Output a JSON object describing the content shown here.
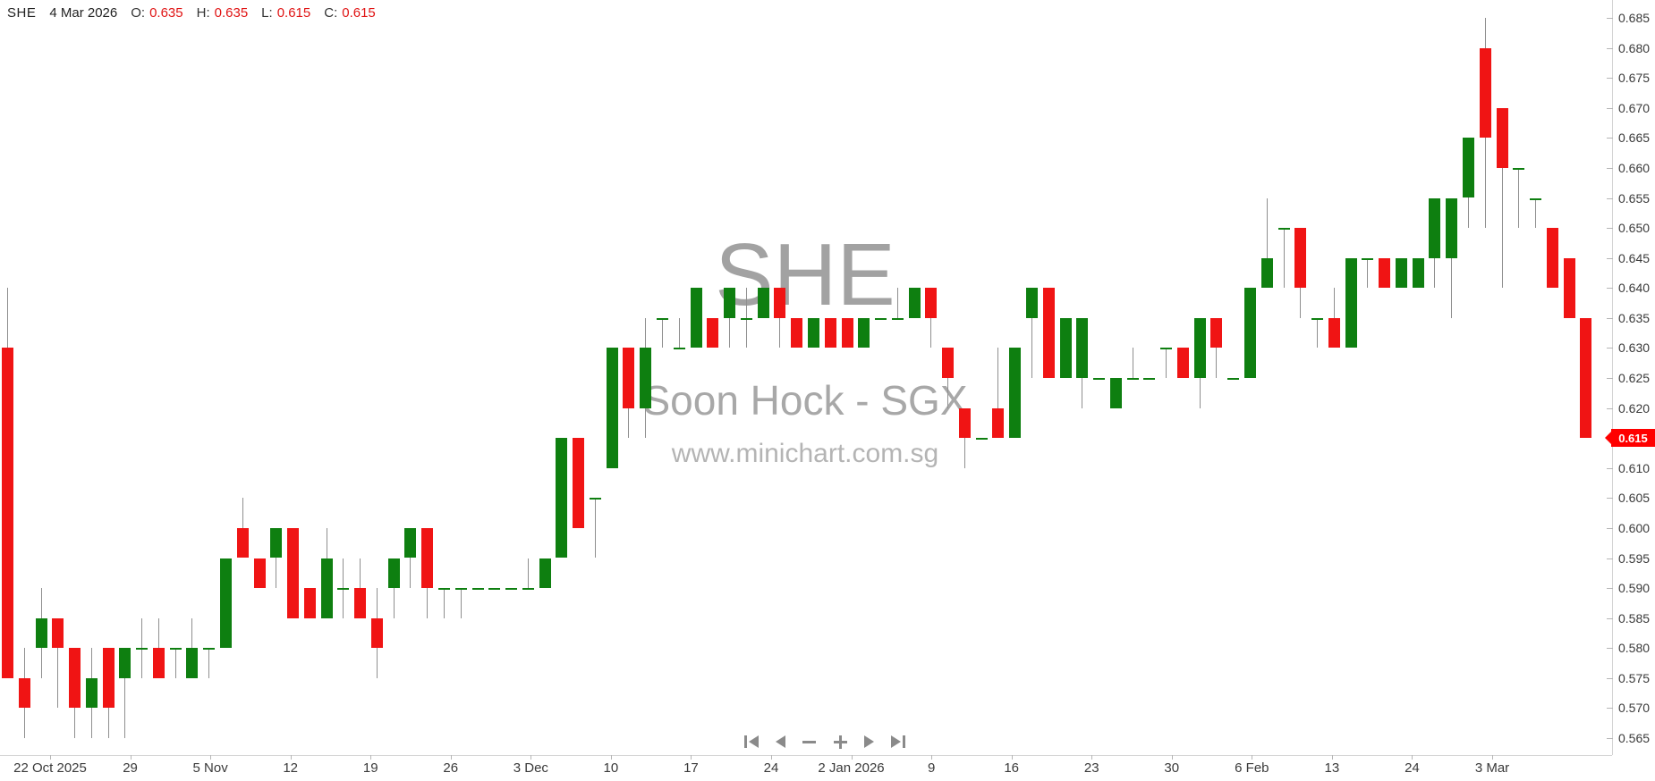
{
  "header": {
    "symbol": "SHE",
    "date": "4 Mar 2026",
    "ohlc": [
      {
        "label": "O:",
        "value": "0.635"
      },
      {
        "label": "H:",
        "value": "0.635"
      },
      {
        "label": "L:",
        "value": "0.615"
      },
      {
        "label": "C:",
        "value": "0.615"
      }
    ]
  },
  "watermark": {
    "symbol": "SHE",
    "name": "Soon Hock - SGX",
    "url": "www.minichart.com.sg"
  },
  "badge": {
    "last_price": "0.615"
  },
  "nav": {
    "buttons": [
      {
        "name": "skip-to-start",
        "icon": "skip-start-icon"
      },
      {
        "name": "step-back",
        "icon": "triangle-left-icon"
      },
      {
        "name": "zoom-out",
        "icon": "minus-icon"
      },
      {
        "name": "zoom-in",
        "icon": "plus-icon"
      },
      {
        "name": "step-forward",
        "icon": "triangle-right-icon"
      },
      {
        "name": "skip-to-end",
        "icon": "skip-end-icon"
      }
    ]
  },
  "colors": {
    "up": "#0e7f10",
    "down": "#f01414",
    "wick": "#8f8f8f",
    "badge": "#ff0000",
    "header_value": "#e01414",
    "watermark": "#a8a8a8",
    "axis": "#d4d4d4"
  },
  "chart_data": {
    "type": "candlestick",
    "symbol": "SHE",
    "title": "SHE Soon Hock - SGX daily candlestick chart",
    "ohlc_format": [
      "open",
      "high",
      "low",
      "close"
    ],
    "ylim": [
      0.565,
      0.685
    ],
    "price_step": 0.005,
    "grid": false,
    "last_price": "0.615",
    "y_tick_labels": [
      "0.685",
      "0.680",
      "0.675",
      "0.670",
      "0.665",
      "0.660",
      "0.655",
      "0.650",
      "0.645",
      "0.640",
      "0.635",
      "0.630",
      "0.625",
      "0.620",
      "0.615",
      "0.610",
      "0.605",
      "0.600",
      "0.595",
      "0.590",
      "0.585",
      "0.580",
      "0.575",
      "0.570",
      "0.565"
    ],
    "x_tick_labels": [
      "22 Oct 2025",
      "29",
      "5 Nov",
      "12",
      "19",
      "26",
      "3 Dec",
      "10",
      "17",
      "24",
      "2 Jan 2026",
      "9",
      "16",
      "23",
      "30",
      "6 Feb",
      "13",
      "24",
      "3 Mar"
    ],
    "candles": [
      [
        0.63,
        0.64,
        0.575,
        0.575
      ],
      [
        0.575,
        0.58,
        0.565,
        0.57
      ],
      [
        0.58,
        0.59,
        0.575,
        0.585
      ],
      [
        0.585,
        0.585,
        0.57,
        0.58
      ],
      [
        0.58,
        0.58,
        0.565,
        0.57
      ],
      [
        0.57,
        0.58,
        0.565,
        0.575
      ],
      [
        0.58,
        0.58,
        0.565,
        0.57
      ],
      [
        0.575,
        0.58,
        0.565,
        0.58
      ],
      [
        0.58,
        0.585,
        0.575,
        0.58
      ],
      [
        0.58,
        0.585,
        0.575,
        0.575
      ],
      [
        0.58,
        0.58,
        0.575,
        0.58
      ],
      [
        0.575,
        0.585,
        0.575,
        0.58
      ],
      [
        0.58,
        0.58,
        0.575,
        0.58
      ],
      [
        0.58,
        0.595,
        0.58,
        0.595
      ],
      [
        0.6,
        0.605,
        0.595,
        0.595
      ],
      [
        0.595,
        0.595,
        0.59,
        0.59
      ],
      [
        0.595,
        0.6,
        0.59,
        0.6
      ],
      [
        0.6,
        0.6,
        0.585,
        0.585
      ],
      [
        0.59,
        0.59,
        0.585,
        0.585
      ],
      [
        0.585,
        0.6,
        0.585,
        0.595
      ],
      [
        0.59,
        0.595,
        0.585,
        0.59
      ],
      [
        0.59,
        0.595,
        0.585,
        0.585
      ],
      [
        0.585,
        0.59,
        0.575,
        0.58
      ],
      [
        0.59,
        0.595,
        0.585,
        0.595
      ],
      [
        0.595,
        0.6,
        0.59,
        0.6
      ],
      [
        0.6,
        0.6,
        0.585,
        0.59
      ],
      [
        0.59,
        0.59,
        0.585,
        0.59
      ],
      [
        0.59,
        0.59,
        0.585,
        0.59
      ],
      [
        0.59,
        0.59,
        0.59,
        0.59
      ],
      [
        0.59,
        0.59,
        0.59,
        0.59
      ],
      [
        0.59,
        0.59,
        0.59,
        0.59
      ],
      [
        0.59,
        0.595,
        0.59,
        0.59
      ],
      [
        0.59,
        0.595,
        0.59,
        0.595
      ],
      [
        0.595,
        0.615,
        0.595,
        0.615
      ],
      [
        0.615,
        0.615,
        0.6,
        0.6
      ],
      [
        0.605,
        0.605,
        0.595,
        0.605
      ],
      [
        0.61,
        0.63,
        0.61,
        0.63
      ],
      [
        0.63,
        0.63,
        0.615,
        0.62
      ],
      [
        0.62,
        0.635,
        0.615,
        0.63
      ],
      [
        0.635,
        0.635,
        0.63,
        0.635
      ],
      [
        0.63,
        0.635,
        0.63,
        0.63
      ],
      [
        0.63,
        0.64,
        0.63,
        0.64
      ],
      [
        0.635,
        0.635,
        0.63,
        0.63
      ],
      [
        0.635,
        0.64,
        0.63,
        0.64
      ],
      [
        0.635,
        0.64,
        0.63,
        0.635
      ],
      [
        0.635,
        0.64,
        0.635,
        0.64
      ],
      [
        0.64,
        0.64,
        0.63,
        0.635
      ],
      [
        0.635,
        0.635,
        0.63,
        0.63
      ],
      [
        0.63,
        0.635,
        0.63,
        0.635
      ],
      [
        0.635,
        0.635,
        0.63,
        0.63
      ],
      [
        0.635,
        0.635,
        0.63,
        0.63
      ],
      [
        0.63,
        0.635,
        0.63,
        0.635
      ],
      [
        0.635,
        0.635,
        0.635,
        0.635
      ],
      [
        0.635,
        0.64,
        0.635,
        0.635
      ],
      [
        0.635,
        0.64,
        0.635,
        0.64
      ],
      [
        0.64,
        0.64,
        0.63,
        0.635
      ],
      [
        0.63,
        0.63,
        0.62,
        0.625
      ],
      [
        0.62,
        0.62,
        0.61,
        0.615
      ],
      [
        0.615,
        0.615,
        0.615,
        0.615
      ],
      [
        0.62,
        0.63,
        0.615,
        0.615
      ],
      [
        0.615,
        0.63,
        0.615,
        0.63
      ],
      [
        0.635,
        0.64,
        0.625,
        0.64
      ],
      [
        0.64,
        0.64,
        0.625,
        0.625
      ],
      [
        0.625,
        0.635,
        0.625,
        0.635
      ],
      [
        0.625,
        0.635,
        0.62,
        0.635
      ],
      [
        0.625,
        0.625,
        0.625,
        0.625
      ],
      [
        0.62,
        0.625,
        0.62,
        0.625
      ],
      [
        0.625,
        0.63,
        0.625,
        0.625
      ],
      [
        0.625,
        0.625,
        0.625,
        0.625
      ],
      [
        0.63,
        0.63,
        0.625,
        0.63
      ],
      [
        0.63,
        0.63,
        0.625,
        0.625
      ],
      [
        0.625,
        0.635,
        0.62,
        0.635
      ],
      [
        0.635,
        0.635,
        0.625,
        0.63
      ],
      [
        0.625,
        0.625,
        0.625,
        0.625
      ],
      [
        0.625,
        0.64,
        0.625,
        0.64
      ],
      [
        0.64,
        0.655,
        0.64,
        0.645
      ],
      [
        0.65,
        0.65,
        0.64,
        0.65
      ],
      [
        0.65,
        0.65,
        0.635,
        0.64
      ],
      [
        0.635,
        0.635,
        0.63,
        0.635
      ],
      [
        0.635,
        0.64,
        0.63,
        0.63
      ],
      [
        0.63,
        0.645,
        0.63,
        0.645
      ],
      [
        0.645,
        0.645,
        0.64,
        0.645
      ],
      [
        0.645,
        0.645,
        0.64,
        0.64
      ],
      [
        0.64,
        0.645,
        0.64,
        0.645
      ],
      [
        0.64,
        0.645,
        0.64,
        0.645
      ],
      [
        0.645,
        0.655,
        0.64,
        0.655
      ],
      [
        0.645,
        0.655,
        0.635,
        0.655
      ],
      [
        0.655,
        0.665,
        0.65,
        0.665
      ],
      [
        0.68,
        0.685,
        0.65,
        0.665
      ],
      [
        0.67,
        0.67,
        0.64,
        0.66
      ],
      [
        0.66,
        0.66,
        0.65,
        0.66
      ],
      [
        0.655,
        0.655,
        0.65,
        0.655
      ],
      [
        0.65,
        0.65,
        0.64,
        0.64
      ],
      [
        0.645,
        0.645,
        0.635,
        0.635
      ],
      [
        0.635,
        0.635,
        0.615,
        0.615
      ]
    ]
  }
}
